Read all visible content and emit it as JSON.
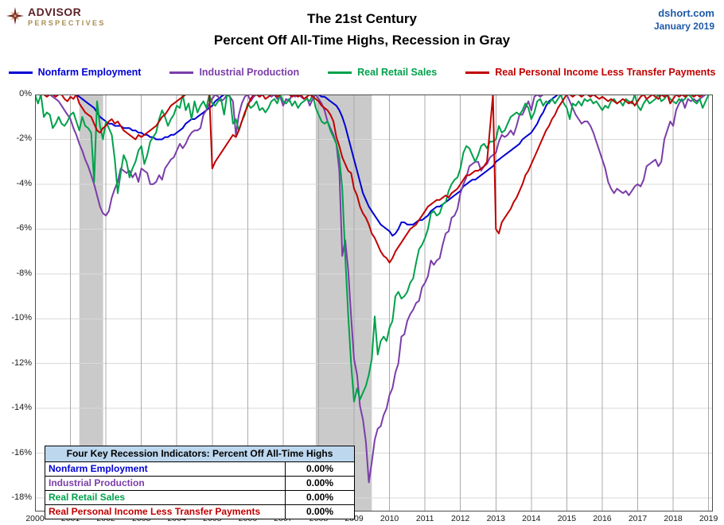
{
  "header": {
    "logo": {
      "line1": "ADVISOR",
      "line2": "PERSPECTIVES"
    },
    "title_line1": "The 21st Century",
    "title_line2": "Percent Off All-Time Highs, Recession in Gray",
    "source": "dshort.com",
    "date": "January 2019"
  },
  "table": {
    "title": "Four Key Recession Indicators: Percent Off All-Time Highs",
    "rows": [
      {
        "label": "Nonfarm Employment",
        "value": "0.00%",
        "color": "#0000d4"
      },
      {
        "label": "Industrial Production",
        "value": "0.00%",
        "color": "#7b3da8"
      },
      {
        "label": "Real Retail Sales",
        "value": "0.00%",
        "color": "#00a14b"
      },
      {
        "label": "Real Personal Income Less Transfer Payments",
        "value": "0.00%",
        "color": "#c00000"
      }
    ]
  },
  "chart_data": {
    "type": "line",
    "title": "The 21st Century — Percent Off All-Time Highs, Recession in Gray",
    "xlabel": "",
    "ylabel": "",
    "x_start": 2000,
    "x_step_months": 1,
    "xlim": [
      2000,
      2019.12
    ],
    "ylim": [
      -18.6,
      0
    ],
    "x_ticks": [
      2000,
      2001,
      2002,
      2003,
      2004,
      2005,
      2006,
      2007,
      2008,
      2009,
      2010,
      2011,
      2012,
      2013,
      2014,
      2015,
      2016,
      2017,
      2018,
      2019
    ],
    "y_ticks": [
      "0%",
      "-2%",
      "-4%",
      "-6%",
      "-8%",
      "-10%",
      "-12%",
      "-14%",
      "-16%",
      "-18%"
    ],
    "y_tick_values": [
      0,
      -2,
      -4,
      -6,
      -8,
      -10,
      -12,
      -14,
      -16,
      -18
    ],
    "grid": true,
    "legend_position": "top",
    "recession_color": "#cacaca",
    "grid_v_color": "#ababab",
    "grid_h_color": "#d9d9d9",
    "border_color": "#4d4d4d",
    "recessions": [
      {
        "start": 2001.25,
        "end": 2001.92
      },
      {
        "start": 2007.92,
        "end": 2009.5
      }
    ],
    "series": [
      {
        "name": "Nonfarm Employment",
        "color": "#0000d4",
        "values": [
          0,
          0,
          0,
          0,
          0,
          0,
          0,
          0,
          0,
          0,
          0,
          0,
          0,
          0,
          0,
          -0.1,
          -0.2,
          -0.3,
          -0.4,
          -0.5,
          -0.6,
          -0.8,
          -1,
          -1.1,
          -1.2,
          -1.3,
          -1.3,
          -1.4,
          -1.4,
          -1.4,
          -1.5,
          -1.5,
          -1.5,
          -1.6,
          -1.6,
          -1.7,
          -1.7,
          -1.8,
          -1.8,
          -1.9,
          -1.9,
          -2,
          -2,
          -2,
          -1.9,
          -1.9,
          -1.8,
          -1.8,
          -1.7,
          -1.6,
          -1.5,
          -1.3,
          -1.2,
          -1.1,
          -1.1,
          -1,
          -0.9,
          -0.8,
          -0.7,
          -0.6,
          -0.5,
          -0.3,
          -0.2,
          -0.1,
          0,
          0,
          0,
          0,
          0,
          0,
          0,
          0,
          0,
          0,
          0,
          0,
          0,
          0,
          0,
          0,
          0,
          0,
          0,
          0,
          0,
          0,
          0,
          0,
          0,
          0,
          0,
          0,
          0,
          0,
          0,
          0,
          0,
          -0.1,
          -0.1,
          -0.2,
          -0.3,
          -0.4,
          -0.5,
          -0.7,
          -1,
          -1.4,
          -1.9,
          -2.4,
          -2.9,
          -3.4,
          -3.9,
          -4.4,
          -4.7,
          -5,
          -5.2,
          -5.4,
          -5.6,
          -5.8,
          -5.9,
          -6,
          -6.1,
          -6.3,
          -6.2,
          -6,
          -5.7,
          -5.7,
          -5.8,
          -5.8,
          -5.8,
          -5.7,
          -5.6,
          -5.6,
          -5.5,
          -5.4,
          -5.2,
          -5.1,
          -5,
          -5,
          -4.9,
          -4.8,
          -4.7,
          -4.6,
          -4.5,
          -4.4,
          -4.3,
          -4.1,
          -4,
          -3.9,
          -3.8,
          -3.8,
          -3.7,
          -3.6,
          -3.5,
          -3.4,
          -3.3,
          -3.2,
          -3,
          -2.9,
          -2.8,
          -2.7,
          -2.6,
          -2.5,
          -2.4,
          -2.3,
          -2.2,
          -2,
          -1.9,
          -1.8,
          -1.7,
          -1.5,
          -1.3,
          -1,
          -0.8,
          -0.5,
          -0.3,
          -0.2,
          -0.1,
          0,
          0,
          0,
          0,
          0,
          0,
          0,
          0,
          0,
          0,
          0,
          0,
          0,
          0,
          0,
          0,
          0,
          0,
          0,
          0,
          0,
          0,
          0,
          0,
          0,
          0,
          0,
          0,
          0,
          0,
          0,
          0,
          0,
          0,
          0,
          0,
          0,
          0,
          0,
          0,
          0,
          0,
          0,
          0,
          0,
          0,
          0,
          0,
          0,
          0,
          0,
          0
        ]
      },
      {
        "name": "Industrial Production",
        "color": "#7b3da8",
        "values": [
          0,
          0,
          0,
          0,
          0,
          0,
          -0.1,
          -0.2,
          -0.3,
          -0.5,
          -0.7,
          -0.9,
          -1.1,
          -1.5,
          -1.8,
          -2.2,
          -2.5,
          -2.9,
          -3.2,
          -3.6,
          -4,
          -4.5,
          -5,
          -5.3,
          -5.4,
          -5.2,
          -4.6,
          -4.2,
          -3.9,
          -3.3,
          -3.4,
          -3.5,
          -3.4,
          -3.7,
          -3.5,
          -3.9,
          -3.3,
          -3.4,
          -3.5,
          -4,
          -4,
          -3.9,
          -3.6,
          -3.8,
          -3.3,
          -3.1,
          -2.9,
          -2.8,
          -2.5,
          -2.2,
          -2.4,
          -2.2,
          -1.9,
          -1.7,
          -1.6,
          -1.6,
          -1.5,
          -0.9,
          -0.7,
          -0.4,
          -0.2,
          0,
          -0.1,
          -0.3,
          -0.2,
          0,
          -0.1,
          -0.3,
          -1.8,
          -0.9,
          -0.4,
          -0.1,
          0,
          -0.3,
          -0.1,
          0,
          -0.1,
          0,
          0,
          0,
          -0.1,
          0,
          -0.2,
          -0.1,
          -0.5,
          -0.2,
          -0.3,
          0,
          -0.1,
          0,
          -0.1,
          -0.2,
          -0.1,
          -0.5,
          -0.2,
          0,
          -0.2,
          -0.4,
          -0.7,
          -1.2,
          -1.5,
          -1.8,
          -2.2,
          -3.4,
          -7.2,
          -6.5,
          -7.8,
          -9.9,
          -11.8,
          -12.5,
          -13.9,
          -14.5,
          -15.5,
          -17.3,
          -16.4,
          -15.4,
          -14.9,
          -14.8,
          -14.3,
          -14,
          -13.4,
          -13.1,
          -12.4,
          -12,
          -10.8,
          -10.7,
          -10.1,
          -9.8,
          -9.6,
          -9.3,
          -9.2,
          -8.6,
          -8.4,
          -8.1,
          -7.4,
          -7.6,
          -7.4,
          -7.3,
          -6.7,
          -6.2,
          -6.1,
          -5.5,
          -5.4,
          -5.1,
          -4.4,
          -4,
          -3.7,
          -3.2,
          -3.1,
          -3,
          -3,
          -3.4,
          -3.2,
          -3.1,
          -2.8,
          -2.7,
          -2.6,
          -2.1,
          -1.8,
          -1.9,
          -1.8,
          -1.6,
          -1.8,
          -1.4,
          -0.9,
          -0.9,
          -0.6,
          -0.3,
          -0.7,
          -0.1,
          0,
          -0.1,
          0,
          0,
          0,
          0,
          0,
          0,
          0,
          0,
          0,
          -0.3,
          -0.6,
          -0.9,
          -1.1,
          -1.3,
          -1.2,
          -1.2,
          -1.4,
          -1.7,
          -2.1,
          -2.5,
          -2.9,
          -3.3,
          -3.9,
          -4.2,
          -4.4,
          -4.2,
          -4.3,
          -4.4,
          -4.3,
          -4.5,
          -4.3,
          -4.1,
          -4,
          -4.1,
          -3.8,
          -3.2,
          -3.1,
          -3,
          -2.9,
          -3.2,
          -3,
          -2,
          -1.6,
          -1.2,
          -1.4,
          -0.7,
          -0.4,
          -0.2,
          -0.6,
          -0.2,
          -0.3,
          -0.2,
          -0.3,
          -0.2,
          -0.1,
          0,
          0
        ]
      },
      {
        "name": "Real Retail Sales",
        "color": "#00a14b",
        "values": [
          0,
          -0.4,
          0,
          -1,
          -0.8,
          -0.9,
          -1.5,
          -1.3,
          -1,
          -1.3,
          -1.4,
          -1.2,
          -0.9,
          -0.8,
          -1.2,
          -1.6,
          -1,
          -1.4,
          -1.5,
          -1.7,
          -3.9,
          -0.3,
          -1.4,
          -2,
          -1.2,
          -1.5,
          -1.8,
          -2.9,
          -4.4,
          -3.5,
          -2.7,
          -3,
          -3.7,
          -3.3,
          -3,
          -2.5,
          -2.3,
          -3.1,
          -2.7,
          -2.1,
          -1.9,
          -1.7,
          -1.1,
          -0.7,
          -1,
          -1.4,
          -1.1,
          -0.9,
          -0.5,
          -0.6,
          0,
          -0.7,
          -0.4,
          -1.1,
          -0.3,
          -0.8,
          -0.5,
          -0.3,
          -0.6,
          0,
          -0.4,
          -0.5,
          -0.3,
          -0.2,
          -0.9,
          0,
          -0.1,
          -1.3,
          -1.1,
          -1.6,
          -1.2,
          -0.9,
          -0.4,
          -0.6,
          -0.5,
          -0.3,
          -0.7,
          -0.6,
          -0.8,
          -0.6,
          -0.3,
          -0.2,
          -0.4,
          0,
          -0.3,
          -0.4,
          -0.2,
          -0.5,
          -0.3,
          -0.6,
          -0.4,
          -0.3,
          -0.2,
          -0.3,
          0,
          -0.6,
          -0.9,
          -1.2,
          -1.3,
          -1.2,
          -1.6,
          -1.9,
          -2.2,
          -2.8,
          -4.2,
          -7.2,
          -9.8,
          -12,
          -13.7,
          -13.1,
          -13.6,
          -13.3,
          -13,
          -12.5,
          -11.8,
          -9.9,
          -11.6,
          -11,
          -10.8,
          -11,
          -10.4,
          -10.1,
          -9,
          -8.8,
          -9.1,
          -9,
          -8.8,
          -8.4,
          -8.2,
          -7.5,
          -6.9,
          -6.7,
          -6.4,
          -6,
          -5.3,
          -5.2,
          -5.4,
          -5.3,
          -4.9,
          -4.8,
          -4.3,
          -4,
          -3.8,
          -3.7,
          -3.3,
          -2.6,
          -2.3,
          -2.4,
          -2.7,
          -3,
          -2.7,
          -2.3,
          -2.2,
          -2.4,
          -2.1,
          -2.1,
          -2,
          -1.4,
          -1.7,
          -1.6,
          -1.3,
          -1,
          -0.9,
          -0.8,
          -0.9,
          -0.7,
          -0.4,
          -0.6,
          -1.1,
          -0.8,
          -0.3,
          -0.2,
          -0.5,
          -0.3,
          -0.4,
          -0.2,
          -0.4,
          -0.2,
          0,
          -0.4,
          -0.6,
          -1.1,
          -0.4,
          -0.5,
          -0.3,
          -0.5,
          -0.2,
          -0.3,
          -0.2,
          -0.4,
          -0.3,
          -0.5,
          -0.7,
          -0.5,
          -0.6,
          -0.3,
          -0.2,
          -0.4,
          -0.3,
          -0.5,
          -0.2,
          -0.3,
          -0.4,
          0,
          -0.5,
          -0.7,
          -0.4,
          -0.2,
          -0.4,
          -0.3,
          -0.2,
          0,
          -0.3,
          -0.2,
          0,
          -0.2,
          -0.3,
          -0.4,
          -0.2,
          -0.3,
          -0.2,
          0,
          -0.1,
          -0.3,
          -0.4,
          -0.2,
          -0.6,
          -0.3,
          0
        ]
      },
      {
        "name": "Real Personal Income Less Transfer Payments",
        "color": "#c00000",
        "values": [
          0,
          0,
          0,
          0,
          -0.1,
          0,
          0,
          -0.1,
          0,
          0,
          -0.2,
          -0.3,
          -0.1,
          -0.2,
          0,
          -0.4,
          -0.6,
          -0.8,
          -0.9,
          -1,
          -1.3,
          -1.6,
          -1.7,
          -1.5,
          -1.4,
          -1.2,
          -1.1,
          -1.3,
          -1.2,
          -1.4,
          -1.6,
          -1.7,
          -1.8,
          -1.9,
          -2,
          -1.8,
          -1.9,
          -1.8,
          -1.7,
          -1.6,
          -1.5,
          -1.4,
          -1.2,
          -1,
          -0.9,
          -0.7,
          -0.5,
          -0.4,
          -0.3,
          -0.2,
          -0.1,
          0,
          0,
          0,
          0,
          0,
          0,
          0,
          0,
          0,
          -3.3,
          -3,
          -2.8,
          -2.6,
          -2.4,
          -2.2,
          -2,
          -1.8,
          -1.9,
          -1.6,
          -1.2,
          -0.8,
          -0.5,
          -0.2,
          0,
          0,
          -0.1,
          0,
          -0.2,
          -0.1,
          0,
          0,
          -0.1,
          0,
          0,
          0,
          0,
          -0.1,
          0,
          -0.1,
          0,
          -0.2,
          -0.1,
          0,
          -0.1,
          -0.2,
          -0.3,
          -0.5,
          -0.6,
          -0.7,
          -0.9,
          -1.2,
          -1.9,
          -2.3,
          -2.8,
          -3.1,
          -3.4,
          -3.5,
          -4.2,
          -4.5,
          -5,
          -5.3,
          -5.5,
          -5.8,
          -6.2,
          -6.4,
          -6.7,
          -7,
          -7.2,
          -7.3,
          -7.5,
          -7.3,
          -7,
          -6.8,
          -6.6,
          -6.4,
          -6.2,
          -6,
          -5.9,
          -5.8,
          -5.6,
          -5.4,
          -5.2,
          -5,
          -4.9,
          -4.8,
          -4.7,
          -4.7,
          -4.6,
          -4.5,
          -4.6,
          -4.4,
          -4.3,
          -4.2,
          -4,
          -3.8,
          -3.6,
          -3.6,
          -3.5,
          -3.4,
          -3.4,
          -3.3,
          -3.2,
          -3,
          -1.5,
          0,
          -6,
          -6.2,
          -5.7,
          -5.5,
          -5.3,
          -5.1,
          -4.8,
          -4.6,
          -4.3,
          -4,
          -3.6,
          -3.4,
          -3.1,
          -2.8,
          -2.5,
          -2.2,
          -1.9,
          -1.6,
          -1.4,
          -1.1,
          -0.9,
          -0.6,
          -0.4,
          -0.2,
          0,
          0,
          -0.1,
          0,
          0,
          -0.1,
          0,
          0,
          -0.1,
          0,
          -0.1,
          -0.2,
          -0.1,
          -0.2,
          -0.3,
          -0.2,
          -0.3,
          -0.4,
          -0.3,
          -0.2,
          -0.3,
          -0.4,
          -0.3,
          -0.5,
          -0.3,
          -0.1,
          0,
          -0.2,
          -0.1,
          0,
          -0.1,
          -0.2,
          0,
          -0.1,
          0,
          -0.4,
          -0.2,
          0,
          -0.1,
          0,
          -0.1,
          0,
          0,
          -0.1,
          0,
          -0.1,
          0,
          0,
          0
        ]
      }
    ]
  }
}
